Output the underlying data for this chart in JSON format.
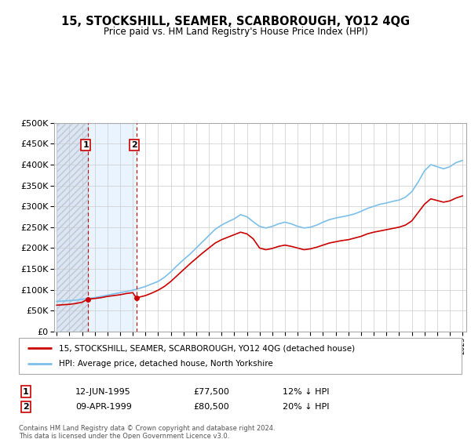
{
  "title": "15, STOCKSHILL, SEAMER, SCARBOROUGH, YO12 4QG",
  "subtitle": "Price paid vs. HM Land Registry's House Price Index (HPI)",
  "sale1_price": 77500,
  "sale1_display": "12-JUN-1995",
  "sale1_hpi_diff": "12% ↓ HPI",
  "sale2_price": 80500,
  "sale2_display": "09-APR-1999",
  "sale2_hpi_diff": "20% ↓ HPI",
  "legend_line1": "15, STOCKSHILL, SEAMER, SCARBOROUGH, YO12 4QG (detached house)",
  "legend_line2": "HPI: Average price, detached house, North Yorkshire",
  "footer": "Contains HM Land Registry data © Crown copyright and database right 2024.\nThis data is licensed under the Open Government Licence v3.0.",
  "hpi_color": "#7bbfea",
  "price_color": "#cc0000",
  "vline_color": "#cc0000",
  "marker_color": "#cc0000",
  "grid_color": "#cccccc",
  "ylim": [
    0,
    500000
  ],
  "yticks": [
    0,
    50000,
    100000,
    150000,
    200000,
    250000,
    300000,
    350000,
    400000,
    450000,
    500000
  ],
  "sale1_year": 1995.449,
  "sale2_year": 1999.271,
  "hpi_x": [
    1993.0,
    1993.5,
    1994.0,
    1994.5,
    1995.0,
    1995.5,
    1996.0,
    1996.5,
    1997.0,
    1997.5,
    1998.0,
    1998.5,
    1999.0,
    1999.5,
    2000.0,
    2000.5,
    2001.0,
    2001.5,
    2002.0,
    2002.5,
    2003.0,
    2003.5,
    2004.0,
    2004.5,
    2005.0,
    2005.5,
    2006.0,
    2006.5,
    2007.0,
    2007.5,
    2008.0,
    2008.5,
    2009.0,
    2009.5,
    2010.0,
    2010.5,
    2011.0,
    2011.5,
    2012.0,
    2012.5,
    2013.0,
    2013.5,
    2014.0,
    2014.5,
    2015.0,
    2015.5,
    2016.0,
    2016.5,
    2017.0,
    2017.5,
    2018.0,
    2018.5,
    2019.0,
    2019.5,
    2020.0,
    2020.5,
    2021.0,
    2021.5,
    2022.0,
    2022.5,
    2023.0,
    2023.5,
    2024.0,
    2024.5,
    2025.0
  ],
  "hpi_y": [
    72000,
    73000,
    74000,
    75000,
    77000,
    79000,
    81000,
    84000,
    87000,
    90000,
    93000,
    96000,
    99000,
    103000,
    108000,
    114000,
    120000,
    130000,
    143000,
    158000,
    172000,
    185000,
    200000,
    215000,
    230000,
    245000,
    255000,
    263000,
    270000,
    280000,
    275000,
    263000,
    252000,
    248000,
    252000,
    258000,
    262000,
    258000,
    252000,
    248000,
    250000,
    255000,
    262000,
    268000,
    272000,
    275000,
    278000,
    282000,
    288000,
    295000,
    300000,
    305000,
    308000,
    312000,
    315000,
    322000,
    335000,
    358000,
    385000,
    400000,
    395000,
    390000,
    395000,
    405000,
    410000
  ],
  "price_x": [
    1993.0,
    1993.5,
    1994.0,
    1994.5,
    1995.0,
    1995.449,
    1995.449,
    1996.0,
    1996.5,
    1997.0,
    1997.5,
    1998.0,
    1998.5,
    1999.0,
    1999.271,
    1999.271,
    2000.0,
    2000.5,
    2001.0,
    2001.5,
    2002.0,
    2002.5,
    2003.0,
    2003.5,
    2004.0,
    2004.5,
    2005.0,
    2005.5,
    2006.0,
    2006.5,
    2007.0,
    2007.5,
    2008.0,
    2008.5,
    2009.0,
    2009.5,
    2010.0,
    2010.5,
    2011.0,
    2011.5,
    2012.0,
    2012.5,
    2013.0,
    2013.5,
    2014.0,
    2014.5,
    2015.0,
    2015.5,
    2016.0,
    2016.5,
    2017.0,
    2017.5,
    2018.0,
    2018.5,
    2019.0,
    2019.5,
    2020.0,
    2020.5,
    2021.0,
    2021.5,
    2022.0,
    2022.5,
    2023.0,
    2023.5,
    2024.0,
    2024.5,
    2025.0
  ],
  "price_y": [
    63000,
    64000,
    65000,
    67000,
    70000,
    77500,
    77500,
    79000,
    81000,
    84000,
    86000,
    88000,
    91000,
    93000,
    80500,
    80500,
    86000,
    92000,
    99000,
    108000,
    120000,
    134000,
    148000,
    162000,
    175000,
    188000,
    200000,
    212000,
    220000,
    226000,
    232000,
    238000,
    234000,
    222000,
    200000,
    196000,
    199000,
    204000,
    207000,
    204000,
    200000,
    196000,
    198000,
    202000,
    207000,
    212000,
    215000,
    218000,
    220000,
    224000,
    228000,
    234000,
    238000,
    241000,
    244000,
    247000,
    250000,
    255000,
    265000,
    285000,
    305000,
    318000,
    314000,
    310000,
    313000,
    320000,
    325000
  ]
}
